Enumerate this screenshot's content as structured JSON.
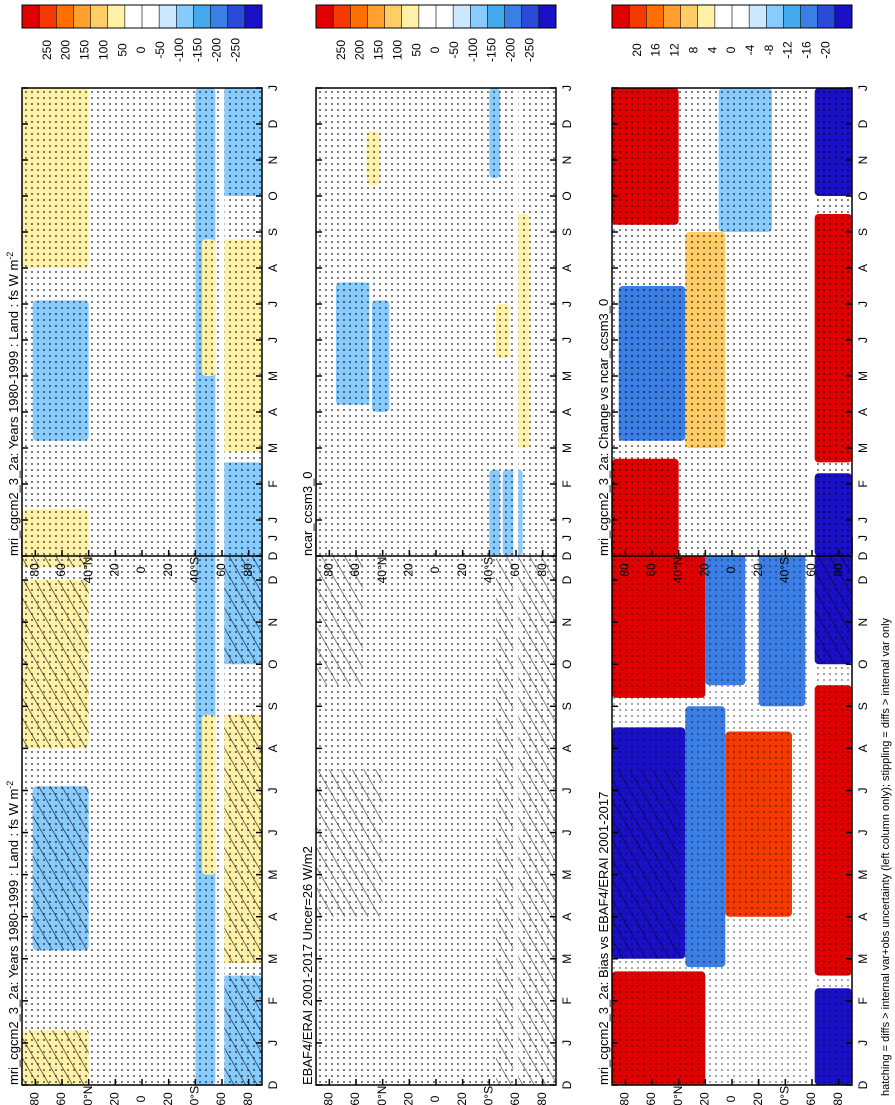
{
  "figure": {
    "footnote": "hatching = diffs > internal var+obs uncertainty (left column only); stippling = diffs > internal var only"
  },
  "colorbars": {
    "flux": {
      "labels": [
        "250",
        "200",
        "150",
        "100",
        "50",
        "0",
        "-50",
        "-100",
        "-150",
        "-200",
        "-250"
      ],
      "colors": [
        "#e00000",
        "#f43a00",
        "#ff7000",
        "#ffa030",
        "#ffcc66",
        "#fff2a8",
        "#ffffff",
        "#ffffff",
        "#cce8ff",
        "#88ccff",
        "#44aaee",
        "#3a7ee6",
        "#2a4ad8",
        "#1a10c8"
      ]
    },
    "diff": {
      "labels": [
        "20",
        "16",
        "12",
        "8",
        "4",
        "0",
        "-4",
        "-8",
        "-12",
        "-16",
        "-20"
      ],
      "colors": [
        "#e00000",
        "#f43a00",
        "#ff7000",
        "#ffa030",
        "#ffcc66",
        "#fff2a8",
        "#ffffff",
        "#ffffff",
        "#cce8ff",
        "#88ccff",
        "#44aaee",
        "#3a7ee6",
        "#2a4ad8",
        "#1a10c8"
      ]
    }
  },
  "chart_data": [
    {
      "type": "heatmap",
      "panel": "top-left",
      "title": "mri_cgcm2_3_2a: Years 1980-1999 : Land : fs W m",
      "title_sup": "-2",
      "x": [
        "D",
        "J",
        "F",
        "M",
        "A",
        "M",
        "J",
        "J",
        "A",
        "S",
        "O",
        "N",
        "D",
        "J"
      ],
      "y_ticks": [
        "80",
        "60",
        "40°N",
        "20",
        "0",
        "20",
        "40°S",
        "60",
        "80"
      ],
      "y_units": "latitude (90N to 90S)",
      "colorbar": "flux",
      "regions": [
        {
          "lat": [
            90,
            40
          ],
          "month": [
            0,
            1.3
          ],
          "value": 50,
          "hatched": true
        },
        {
          "lat": [
            90,
            40
          ],
          "month": [
            8.0,
            12.0
          ],
          "value": 50,
          "hatched": true
        },
        {
          "lat": [
            90,
            40
          ],
          "month": [
            12.3,
            13
          ],
          "value": 50,
          "hatched": true
        },
        {
          "lat": [
            82,
            40
          ],
          "month": [
            3.2,
            7.1
          ],
          "value": -100,
          "hatched": true
        },
        {
          "lat": [
            -40,
            -55
          ],
          "month": [
            0,
            13
          ],
          "value": -100,
          "hatched": false
        },
        {
          "lat": [
            -58,
            -90
          ],
          "month": [
            0,
            2.6
          ],
          "value": -100,
          "hatched": true
        },
        {
          "lat": [
            -58,
            -90
          ],
          "month": [
            10.0,
            13
          ],
          "value": -100,
          "hatched": true
        },
        {
          "lat": [
            -45,
            -55
          ],
          "month": [
            5.0,
            8.8
          ],
          "value": 50,
          "hatched": false
        },
        {
          "lat": [
            -58,
            -90
          ],
          "month": [
            2.9,
            8.8
          ],
          "value": 50,
          "hatched": true
        }
      ]
    },
    {
      "type": "heatmap",
      "panel": "top-right",
      "title": "mri_cgcm2_3_2a: Years 1980-1999 : Land : fs W m",
      "title_sup": "-2",
      "x": [
        "D",
        "J",
        "F",
        "M",
        "A",
        "M",
        "J",
        "J",
        "A",
        "S",
        "O",
        "N",
        "D",
        "J"
      ],
      "y_ticks": [
        "80",
        "60",
        "40°N",
        "20",
        "0",
        "20",
        "40°S",
        "60",
        "80"
      ],
      "y_units": "latitude (90N to 90S)",
      "colorbar": "flux",
      "regions": [
        {
          "lat": [
            90,
            40
          ],
          "month": [
            0,
            1.3
          ],
          "value": 50,
          "stippled": true
        },
        {
          "lat": [
            90,
            40
          ],
          "month": [
            8.0,
            13
          ],
          "value": 50,
          "stippled": true
        },
        {
          "lat": [
            82,
            40
          ],
          "month": [
            3.2,
            7.1
          ],
          "value": -100,
          "stippled": true
        },
        {
          "lat": [
            -40,
            -55
          ],
          "month": [
            0,
            13
          ],
          "value": -100,
          "stippled": true
        },
        {
          "lat": [
            -58,
            -90
          ],
          "month": [
            0,
            2.6
          ],
          "value": -100,
          "stippled": true
        },
        {
          "lat": [
            -58,
            -90
          ],
          "month": [
            10.0,
            13
          ],
          "value": -100,
          "stippled": true
        },
        {
          "lat": [
            -45,
            -55
          ],
          "month": [
            5.0,
            8.8
          ],
          "value": 50,
          "stippled": true
        },
        {
          "lat": [
            -58,
            -90
          ],
          "month": [
            2.9,
            8.8
          ],
          "value": 50,
          "stippled": true
        }
      ]
    },
    {
      "type": "heatmap",
      "panel": "middle-left",
      "title": "EBAF4/ERAI 2001-2017 Uncer=26 W/m2",
      "x": [
        "D",
        "J",
        "F",
        "M",
        "A",
        "M",
        "J",
        "J",
        "A",
        "S",
        "O",
        "N",
        "D",
        "J"
      ],
      "y_ticks": [
        "80",
        "60",
        "40°N",
        "20",
        "0",
        "20",
        "40°S",
        "60",
        "80"
      ],
      "y_units": "latitude (90N to 90S)",
      "colorbar": "flux",
      "regions": []
    },
    {
      "type": "heatmap",
      "panel": "middle-right",
      "title": "ncar_ccsm3_0",
      "x": [
        "D",
        "J",
        "F",
        "M",
        "A",
        "M",
        "J",
        "J",
        "A",
        "S",
        "O",
        "N",
        "D",
        "J"
      ],
      "y_ticks": [
        "80",
        "60",
        "40°N",
        "20",
        "0",
        "20",
        "40°S",
        "60",
        "80"
      ],
      "y_units": "latitude (90N to 90S)",
      "colorbar": "flux",
      "regions": [
        {
          "lat": [
            75,
            50
          ],
          "month": [
            4.2,
            7.6
          ],
          "value": -100,
          "stippled": true
        },
        {
          "lat": [
            48,
            35
          ],
          "month": [
            4.0,
            7.1
          ],
          "value": -100,
          "stippled": true
        },
        {
          "lat": [
            52,
            42
          ],
          "month": [
            10.3,
            11.8
          ],
          "value": 50,
          "stippled": true
        },
        {
          "lat": [
            -40,
            -48
          ],
          "month": [
            0,
            2.4
          ],
          "value": -100,
          "stippled": true
        },
        {
          "lat": [
            -50,
            -65
          ],
          "month": [
            0,
            2.4
          ],
          "value": -100,
          "stippled": true
        },
        {
          "lat": [
            -40,
            -48
          ],
          "month": [
            10.5,
            13
          ],
          "value": -100,
          "stippled": true
        },
        {
          "lat": [
            -45,
            -55
          ],
          "month": [
            5.5,
            7.0
          ],
          "value": 50,
          "stippled": true
        },
        {
          "lat": [
            -60,
            -70
          ],
          "month": [
            3.0,
            9.5
          ],
          "value": 50,
          "stippled": true
        }
      ]
    },
    {
      "type": "heatmap",
      "panel": "bottom-left",
      "title": "mri_cgcm2_3_2a: Bias vs EBAF4/ERAI 2001-2017",
      "x": [
        "D",
        "J",
        "F",
        "M",
        "A",
        "M",
        "J",
        "J",
        "A",
        "S",
        "O",
        "N",
        "D",
        "J"
      ],
      "y_ticks": [
        "80",
        "60",
        "40°N",
        "20",
        "0",
        "20",
        "40°S",
        "60",
        "80"
      ],
      "y_units": "latitude (90N to 90S)",
      "colorbar": "diff",
      "regions": [
        {
          "lat": [
            90,
            20
          ],
          "month": [
            0,
            2.7
          ],
          "value": 20
        },
        {
          "lat": [
            90,
            20
          ],
          "month": [
            9.2,
            13
          ],
          "value": 20
        },
        {
          "lat": [
            90,
            35
          ],
          "month": [
            3.0,
            8.5
          ],
          "value": -20
        },
        {
          "lat": [
            35,
            5
          ],
          "month": [
            2.8,
            9.0
          ],
          "value": -12
        },
        {
          "lat": [
            20,
            -10
          ],
          "month": [
            9.5,
            13
          ],
          "value": -12
        },
        {
          "lat": [
            5,
            -45
          ],
          "month": [
            4.0,
            8.4
          ],
          "value": 16
        },
        {
          "lat": [
            -20,
            -55
          ],
          "month": [
            9.0,
            13
          ],
          "value": -12
        },
        {
          "lat": [
            -62,
            -90
          ],
          "month": [
            0,
            2.3
          ],
          "value": -20
        },
        {
          "lat": [
            -62,
            -90
          ],
          "month": [
            2.6,
            9.5
          ],
          "value": 20
        },
        {
          "lat": [
            -62,
            -90
          ],
          "month": [
            10.0,
            13
          ],
          "value": -20
        }
      ]
    },
    {
      "type": "heatmap",
      "panel": "bottom-right",
      "title": "mri_cgcm2_3_2a: Change vs ncar_ccsm3_0",
      "x": [
        "D",
        "J",
        "F",
        "M",
        "A",
        "M",
        "J",
        "J",
        "A",
        "S",
        "O",
        "N",
        "D",
        "J"
      ],
      "y_ticks": [
        "80",
        "60",
        "40°N",
        "20",
        "0",
        "20",
        "40°S",
        "60",
        "80"
      ],
      "y_units": "latitude (90N to 90S)",
      "colorbar": "diff",
      "regions": [
        {
          "lat": [
            90,
            40
          ],
          "month": [
            0,
            2.7
          ],
          "value": 20
        },
        {
          "lat": [
            90,
            40
          ],
          "month": [
            9.2,
            13
          ],
          "value": 20
        },
        {
          "lat": [
            85,
            35
          ],
          "month": [
            3.2,
            7.5
          ],
          "value": -12
        },
        {
          "lat": [
            35,
            5
          ],
          "month": [
            3.0,
            9.0
          ],
          "value": 8
        },
        {
          "lat": [
            10,
            -30
          ],
          "month": [
            9.0,
            13
          ],
          "value": -8
        },
        {
          "lat": [
            -62,
            -90
          ],
          "month": [
            0,
            2.3
          ],
          "value": -20
        },
        {
          "lat": [
            -62,
            -90
          ],
          "month": [
            2.6,
            9.5
          ],
          "value": 20
        },
        {
          "lat": [
            -62,
            -90
          ],
          "month": [
            10.0,
            13
          ],
          "value": -20
        }
      ]
    }
  ]
}
